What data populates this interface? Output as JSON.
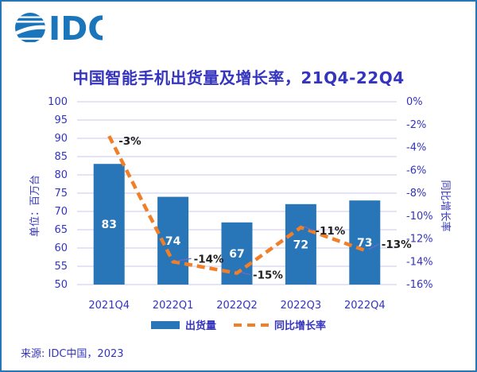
{
  "logo": {
    "text": "IDC",
    "color": "#1b75bb"
  },
  "title": {
    "text": "中国智能手机出货量及增长率，21Q4-22Q4",
    "color": "#3434be"
  },
  "chart_data": {
    "type": "bar",
    "subtype": "bar+line combo, dual axis",
    "title": "中国智能手机出货量及增长率，21Q4-22Q4",
    "categories": [
      "2021Q4",
      "2022Q1",
      "2022Q2",
      "2022Q3",
      "2022Q4"
    ],
    "series": [
      {
        "name": "出货量",
        "type": "bar",
        "axis": "left",
        "values": [
          83,
          74,
          67,
          72,
          73
        ],
        "data_labels": [
          "83",
          "74",
          "67",
          "72",
          "73"
        ],
        "color": "#2876b8"
      },
      {
        "name": "同比增长率",
        "type": "line",
        "axis": "right",
        "style": "dashed",
        "values": [
          -3,
          -14,
          -15,
          -11,
          -13
        ],
        "data_labels": [
          "-3%",
          "-14%",
          "-15%",
          "-11%",
          "-13%"
        ],
        "color": "#f07f28"
      }
    ],
    "left_axis": {
      "title": "单位：百万台",
      "min": 50,
      "max": 100,
      "step": 5,
      "tick_labels": [
        "100",
        "95",
        "90",
        "85",
        "80",
        "75",
        "70",
        "65",
        "60",
        "55",
        "50"
      ]
    },
    "right_axis": {
      "title": "同比增长率",
      "min": -16,
      "max": 0,
      "step": 2,
      "suffix": "%",
      "tick_labels": [
        "0%",
        "-2%",
        "-4%",
        "-6%",
        "-8%",
        "-10%",
        "-12%",
        "-14%",
        "-16%"
      ]
    },
    "grid": true,
    "legend_position": "bottom"
  },
  "legend": {
    "items": [
      {
        "label": "出货量",
        "swatch": "bar",
        "color": "#2876b8"
      },
      {
        "label": "同比增长率",
        "swatch": "dashed-line",
        "color": "#f07f28"
      }
    ]
  },
  "source": {
    "text": "来源: IDC中国，2023"
  },
  "colors": {
    "border": "#2577b8",
    "grid": "#c9c9e9",
    "axis_text": "#3434be",
    "bar": "#2876b8",
    "line": "#f07f28",
    "bar_label": "#ffffff",
    "line_label": "#1f1f1f",
    "leader": "#6b6bcc",
    "logo_blue": "#1b75bb"
  }
}
